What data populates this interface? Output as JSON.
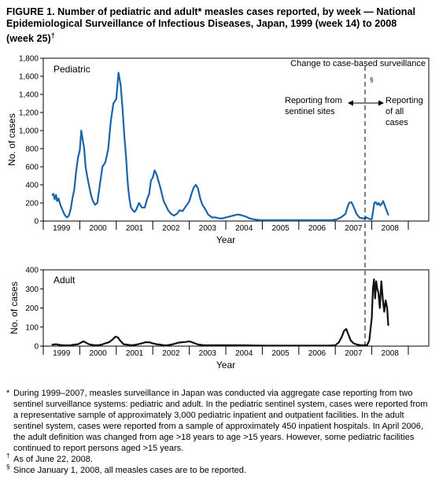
{
  "title": {
    "line1": "FIGURE 1. Number of pediatric and adult* measles cases reported, by week — National",
    "line2": "Epidemiological Surveillance of Infectious Diseases, Japan, 1999 (week 14) to 2008",
    "line3": "(week 25)",
    "line3_mark": "†"
  },
  "chart_data": [
    {
      "type": "line",
      "panel_label": "Pediatric",
      "ylabel": "No. of cases",
      "xlabel": "Year",
      "ylim": [
        0,
        1800
      ],
      "yticks": [
        "0",
        "200",
        "400",
        "600",
        "800",
        "1,000",
        "1,200",
        "1,400",
        "1,600",
        "1,800"
      ],
      "xticks": [
        "1999",
        "2000",
        "2001",
        "2002",
        "2003",
        "2004",
        "2005",
        "2006",
        "2007",
        "2008"
      ],
      "x_unit": "year (fractional)",
      "color": "#1a64ab",
      "x": [
        1999.25,
        1999.28,
        1999.31,
        1999.35,
        1999.38,
        1999.42,
        1999.46,
        1999.5,
        1999.55,
        1999.6,
        1999.65,
        1999.7,
        1999.75,
        1999.8,
        1999.85,
        1999.9,
        1999.95,
        2000.0,
        2000.04,
        2000.08,
        2000.12,
        2000.16,
        2000.2,
        2000.25,
        2000.3,
        2000.36,
        2000.42,
        2000.48,
        2000.55,
        2000.62,
        2000.7,
        2000.78,
        2000.85,
        2000.92,
        2001.0,
        2001.06,
        2001.12,
        2001.17,
        2001.22,
        2001.27,
        2001.3,
        2001.33,
        2001.36,
        2001.4,
        2001.45,
        2001.5,
        2001.55,
        2001.62,
        2001.7,
        2001.78,
        2001.85,
        2001.9,
        2001.95,
        2002.0,
        2002.05,
        2002.1,
        2002.15,
        2002.2,
        2002.25,
        2002.3,
        2002.36,
        2002.42,
        2002.5,
        2002.58,
        2002.66,
        2002.74,
        2002.82,
        2002.88,
        2002.94,
        2003.0,
        2003.06,
        2003.12,
        2003.18,
        2003.24,
        2003.3,
        2003.36,
        2003.44,
        2003.52,
        2003.62,
        2003.72,
        2003.82,
        2003.92,
        2004.0,
        2004.1,
        2004.2,
        2004.3,
        2004.38,
        2004.46,
        2004.55,
        2004.65,
        2004.75,
        2004.85,
        2004.95,
        2005.1,
        2005.3,
        2005.5,
        2005.7,
        2005.9,
        2006.1,
        2006.3,
        2006.5,
        2006.7,
        2006.9,
        2007.05,
        2007.15,
        2007.22,
        2007.28,
        2007.33,
        2007.38,
        2007.44,
        2007.5,
        2007.58,
        2007.66,
        2007.74,
        2007.8,
        2007.85,
        2007.9,
        2007.95,
        2008.0,
        2008.03,
        2008.07,
        2008.11,
        2008.15,
        2008.19,
        2008.23,
        2008.27,
        2008.31,
        2008.35,
        2008.4,
        2008.45
      ],
      "y": [
        290,
        300,
        240,
        290,
        220,
        250,
        190,
        150,
        100,
        60,
        40,
        60,
        130,
        250,
        350,
        550,
        700,
        780,
        1000,
        900,
        800,
        600,
        500,
        400,
        300,
        220,
        180,
        200,
        400,
        600,
        650,
        800,
        1100,
        1300,
        1350,
        1640,
        1500,
        1250,
        950,
        700,
        500,
        350,
        250,
        150,
        120,
        100,
        130,
        200,
        150,
        150,
        250,
        300,
        450,
        480,
        560,
        520,
        450,
        380,
        300,
        220,
        170,
        120,
        80,
        60,
        80,
        120,
        110,
        150,
        180,
        220,
        300,
        370,
        400,
        360,
        250,
        180,
        130,
        70,
        40,
        40,
        30,
        30,
        40,
        50,
        60,
        70,
        70,
        60,
        50,
        30,
        20,
        15,
        10,
        10,
        10,
        10,
        10,
        10,
        10,
        10,
        10,
        10,
        10,
        20,
        40,
        60,
        80,
        150,
        200,
        210,
        160,
        80,
        40,
        30,
        30,
        40,
        30,
        20,
        20,
        100,
        200,
        210,
        180,
        200,
        170,
        190,
        220,
        180,
        120,
        70
      ]
    },
    {
      "type": "line",
      "panel_label": "Adult",
      "ylabel": "No. of cases",
      "xlabel": "Year",
      "ylim": [
        0,
        400
      ],
      "yticks": [
        "0",
        "100",
        "200",
        "300",
        "400"
      ],
      "xticks": [
        "1999",
        "2000",
        "2001",
        "2002",
        "2003",
        "2004",
        "2005",
        "2006",
        "2007",
        "2008"
      ],
      "x_unit": "year (fractional)",
      "color": "#111111",
      "x": [
        1999.25,
        1999.35,
        1999.45,
        1999.55,
        1999.65,
        1999.75,
        1999.85,
        1999.95,
        2000.05,
        2000.1,
        2000.15,
        2000.2,
        2000.25,
        2000.3,
        2000.4,
        2000.5,
        2000.6,
        2000.7,
        2000.8,
        2000.9,
        2000.98,
        2001.05,
        2001.1,
        2001.15,
        2001.2,
        2001.3,
        2001.4,
        2001.5,
        2001.6,
        2001.7,
        2001.8,
        2001.9,
        2002.0,
        2002.1,
        2002.2,
        2002.3,
        2002.4,
        2002.5,
        2002.6,
        2002.7,
        2002.8,
        2002.9,
        2003.0,
        2003.08,
        2003.15,
        2003.25,
        2003.4,
        2003.6,
        2003.8,
        2004.0,
        2004.3,
        2004.6,
        2005.0,
        2005.5,
        2006.0,
        2006.5,
        2006.8,
        2007.0,
        2007.1,
        2007.18,
        2007.24,
        2007.3,
        2007.36,
        2007.42,
        2007.5,
        2007.6,
        2007.7,
        2007.8,
        2007.87,
        2007.93,
        2008.0,
        2008.03,
        2008.06,
        2008.09,
        2008.12,
        2008.15,
        2008.18,
        2008.22,
        2008.26,
        2008.3,
        2008.34,
        2008.38,
        2008.42,
        2008.45
      ],
      "y": [
        8,
        10,
        6,
        5,
        4,
        5,
        8,
        10,
        20,
        25,
        20,
        15,
        10,
        8,
        5,
        5,
        8,
        15,
        20,
        35,
        50,
        45,
        30,
        20,
        10,
        8,
        5,
        6,
        10,
        15,
        20,
        20,
        15,
        10,
        8,
        5,
        5,
        8,
        12,
        18,
        20,
        22,
        25,
        20,
        15,
        8,
        5,
        5,
        5,
        5,
        5,
        4,
        3,
        3,
        3,
        3,
        3,
        5,
        20,
        50,
        80,
        90,
        60,
        30,
        15,
        8,
        5,
        5,
        5,
        30,
        150,
        300,
        350,
        250,
        340,
        300,
        280,
        200,
        340,
        250,
        180,
        240,
        200,
        110
      ]
    }
  ],
  "annotations": {
    "change_label": "Change to case-based surveillance",
    "section_mark": "§",
    "left_arrow_label_1": "Reporting from",
    "left_arrow_label_2": "sentinel sites",
    "right_arrow_label_1": "Reporting",
    "right_arrow_label_2": "of all",
    "right_arrow_label_3": "cases"
  },
  "footnotes": {
    "note1_mark": "*",
    "note1_text": "During 1999–2007, measles surveillance in Japan was conducted via aggregate case reporting from two sentinel surveillance systems: pediatric and adult. In the pediatric sentinel system, cases were reported from a representative sample of approximately 3,000 pediatric inpatient and outpatient facilities. In the adult sentinel system, cases were reported from a sample of approximately 450 inpatient hospitals. In April 2006, the adult definition was changed from age >18 years to age >15 years. However, some pediatric facilities continued to report persons aged >15 years.",
    "note2_mark": "†",
    "note2_text": "As of June 22, 2008.",
    "note3_mark": "§",
    "note3_text": "Since January 1, 2008, all measles cases are to be reported."
  }
}
